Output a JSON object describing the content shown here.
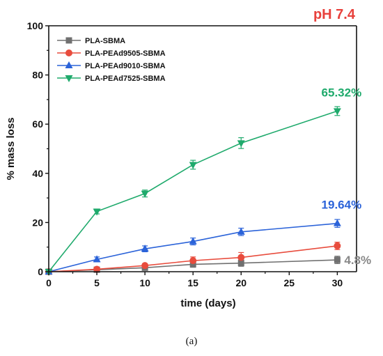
{
  "chart_data": {
    "type": "line",
    "condition_label": "pH 7.4",
    "condition_color": "#e8413c",
    "xlabel": "time (days)",
    "ylabel": "% mass loss",
    "xlim": [
      0,
      32
    ],
    "ylim": [
      0,
      100
    ],
    "xticks": [
      0,
      5,
      10,
      15,
      20,
      25,
      30
    ],
    "yticks": [
      0,
      20,
      40,
      60,
      80,
      100
    ],
    "grid": false,
    "legend_position": "top-left",
    "series": [
      {
        "name": "PLA-SBMA",
        "color": "#707070",
        "marker": "square",
        "x": [
          0,
          5,
          10,
          15,
          20,
          30
        ],
        "y": [
          0,
          0.8,
          1.6,
          3.0,
          3.5,
          4.8
        ],
        "err": [
          0,
          0.4,
          0.6,
          1.2,
          1.3,
          1.5
        ]
      },
      {
        "name": "PLA-PEAd9505-SBMA",
        "color": "#e84c3d",
        "marker": "circle",
        "x": [
          0,
          5,
          10,
          15,
          20,
          30
        ],
        "y": [
          0,
          1.0,
          2.5,
          4.5,
          5.8,
          10.5
        ],
        "err": [
          0,
          0.5,
          0.7,
          1.5,
          2.0,
          1.5
        ]
      },
      {
        "name": "PLA-PEAd9010-SBMA",
        "color": "#2b63d9",
        "marker": "triangle-up",
        "x": [
          0,
          5,
          10,
          15,
          20,
          30
        ],
        "y": [
          0,
          5.0,
          9.3,
          12.3,
          16.2,
          19.64
        ],
        "err": [
          0,
          1.0,
          1.2,
          1.4,
          1.5,
          1.6
        ]
      },
      {
        "name": "PLA-PEAd7525-SBMA",
        "color": "#1faa6c",
        "marker": "triangle-down",
        "x": [
          0,
          5,
          10,
          15,
          20,
          30
        ],
        "y": [
          0,
          24.5,
          31.8,
          43.5,
          52.3,
          65.32
        ],
        "err": [
          0,
          1.0,
          1.4,
          1.8,
          2.2,
          1.8
        ]
      }
    ],
    "annotations": [
      {
        "text": "65.32%",
        "series": "PLA-PEAd7525-SBMA",
        "color": "#1faa6c"
      },
      {
        "text": "19.64%",
        "series": "PLA-PEAd9010-SBMA",
        "color": "#2b63d9"
      },
      {
        "text": "4.8%",
        "series": "PLA-SBMA",
        "color": "#888888"
      }
    ]
  },
  "caption": "(a)"
}
